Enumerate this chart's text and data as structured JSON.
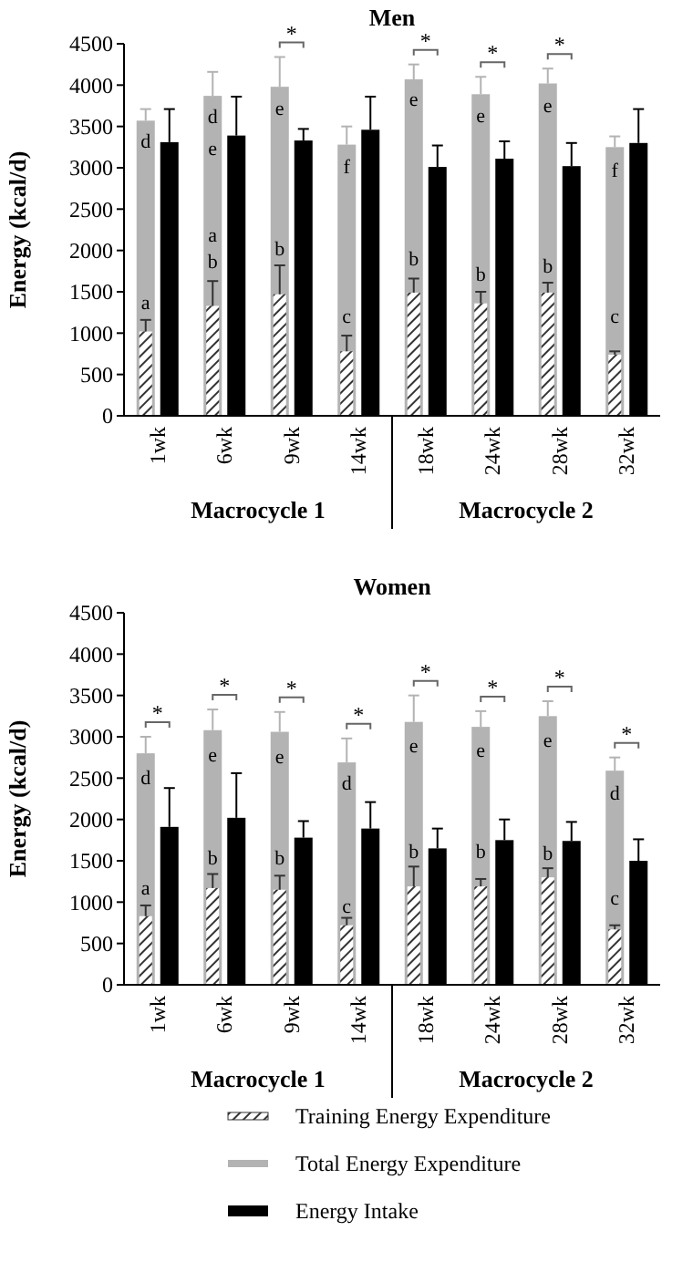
{
  "chart_data": [
    {
      "type": "bar",
      "title": "Men",
      "ylabel": "Energy (kcal/d)",
      "legend": "bottom",
      "categories": [
        "1wk",
        "6wk",
        "9wk",
        "14wk",
        "18wk",
        "24wk",
        "28wk",
        "32wk"
      ],
      "ylim": [
        0,
        4500
      ],
      "yticks": [
        0,
        500,
        1000,
        1500,
        2000,
        2500,
        3000,
        3500,
        4000,
        4500
      ],
      "series": [
        {
          "name": "Training Energy Expenditure",
          "color": "#333333",
          "values": [
            1020,
            1330,
            1470,
            780,
            1490,
            1360,
            1490,
            740
          ],
          "errors": [
            140,
            300,
            350,
            190,
            170,
            140,
            120,
            40
          ]
        },
        {
          "name": "Total Energy Expenditure",
          "color": "#b3b3b3",
          "values": [
            3570,
            3870,
            3980,
            3280,
            4070,
            3890,
            4020,
            3250
          ],
          "errors": [
            140,
            290,
            360,
            220,
            180,
            210,
            180,
            130
          ]
        },
        {
          "name": "Energy Intake",
          "color": "#000000",
          "values": [
            3310,
            3390,
            3330,
            3460,
            3010,
            3110,
            3020,
            3300
          ],
          "errors": [
            400,
            470,
            140,
            400,
            260,
            210,
            280,
            410
          ]
        }
      ],
      "annotations": [
        "Macrocycle 1",
        "Macrocycle 2",
        {
          "text": "d",
          "x": "1wk",
          "y": 3330
        },
        {
          "text": "a",
          "x": "1wk",
          "y": 1380
        },
        {
          "text": "d",
          "x": "6wk",
          "y": 3620
        },
        {
          "text": "e",
          "x": "6wk",
          "y": 3240
        },
        {
          "text": "a",
          "x": "6wk",
          "y": 2190
        },
        {
          "text": "b",
          "x": "6wk",
          "y": 1870
        },
        {
          "text": "e",
          "x": "9wk",
          "y": 3720
        },
        {
          "text": "b",
          "x": "9wk",
          "y": 2030
        },
        {
          "text": "*",
          "x": "9wk",
          "y": 3980
        },
        {
          "text": "f",
          "x": "14wk",
          "y": 3020
        },
        {
          "text": "c",
          "x": "14wk",
          "y": 1210
        },
        {
          "text": "e",
          "x": "18wk",
          "y": 3830
        },
        {
          "text": "b",
          "x": "18wk",
          "y": 1900
        },
        {
          "text": "*",
          "x": "18wk",
          "y": 4070
        },
        {
          "text": "e",
          "x": "24wk",
          "y": 3640
        },
        {
          "text": "b",
          "x": "24wk",
          "y": 1720
        },
        {
          "text": "*",
          "x": "24wk",
          "y": 3890
        },
        {
          "text": "e",
          "x": "28wk",
          "y": 3760
        },
        {
          "text": "b",
          "x": "28wk",
          "y": 1820
        },
        {
          "text": "*",
          "x": "28wk",
          "y": 4020
        },
        {
          "text": "f",
          "x": "32wk",
          "y": 2980
        },
        {
          "text": "c",
          "x": "32wk",
          "y": 1210
        }
      ]
    },
    {
      "type": "bar",
      "title": "Women",
      "ylabel": "Energy (kcal/d)",
      "categories": [
        "1wk",
        "6wk",
        "9wk",
        "14wk",
        "18wk",
        "24wk",
        "28wk",
        "32wk"
      ],
      "ylim": [
        0,
        4500
      ],
      "yticks": [
        0,
        500,
        1000,
        1500,
        2000,
        2500,
        3000,
        3500,
        4000,
        4500
      ],
      "series": [
        {
          "color": "#333333",
          "values": [
            830,
            1170,
            1150,
            720,
            1190,
            1190,
            1300,
            670
          ],
          "errors": [
            130,
            170,
            170,
            90,
            240,
            90,
            110,
            50
          ]
        },
        {
          "color": "#b3b3b3",
          "values": [
            2800,
            3080,
            3060,
            2690,
            3180,
            3120,
            3250,
            2590
          ],
          "errors": [
            200,
            250,
            240,
            290,
            320,
            190,
            180,
            160
          ]
        },
        {
          "color": "#000000",
          "values": [
            1910,
            2020,
            1780,
            1890,
            1650,
            1750,
            1740,
            1500
          ],
          "errors": [
            470,
            540,
            200,
            320,
            240,
            250,
            230,
            260
          ]
        }
      ],
      "annotations": [
        "Macrocycle 1",
        "Macrocycle 2",
        {
          "text": "d",
          "x": "1wk",
          "y": 2510
        },
        {
          "text": "a",
          "x": "1wk",
          "y": 1180
        },
        {
          "text": "*",
          "x": "1wk",
          "y": 2800
        },
        {
          "text": "e",
          "x": "6wk",
          "y": 2790
        },
        {
          "text": "b",
          "x": "6wk",
          "y": 1540
        },
        {
          "text": "*",
          "x": "6wk",
          "y": 3080
        },
        {
          "text": "e",
          "x": "9wk",
          "y": 2770
        },
        {
          "text": "b",
          "x": "9wk",
          "y": 1540
        },
        {
          "text": "*",
          "x": "9wk",
          "y": 3060
        },
        {
          "text": "d",
          "x": "14wk",
          "y": 2450
        },
        {
          "text": "c",
          "x": "14wk",
          "y": 960
        },
        {
          "text": "*",
          "x": "14wk",
          "y": 2690
        },
        {
          "text": "e",
          "x": "18wk",
          "y": 2900
        },
        {
          "text": "b",
          "x": "18wk",
          "y": 1620
        },
        {
          "text": "*",
          "x": "18wk",
          "y": 3180
        },
        {
          "text": "e",
          "x": "24wk",
          "y": 2840
        },
        {
          "text": "b",
          "x": "24wk",
          "y": 1620
        },
        {
          "text": "*",
          "x": "24wk",
          "y": 3120
        },
        {
          "text": "e",
          "x": "28wk",
          "y": 2960
        },
        {
          "text": "b",
          "x": "28wk",
          "y": 1600
        },
        {
          "text": "*",
          "x": "28wk",
          "y": 3250
        },
        {
          "text": "d",
          "x": "32wk",
          "y": 2320
        },
        {
          "text": "c",
          "x": "32wk",
          "y": 1060
        },
        {
          "text": "*",
          "x": "32wk",
          "y": 2590
        }
      ]
    }
  ]
}
